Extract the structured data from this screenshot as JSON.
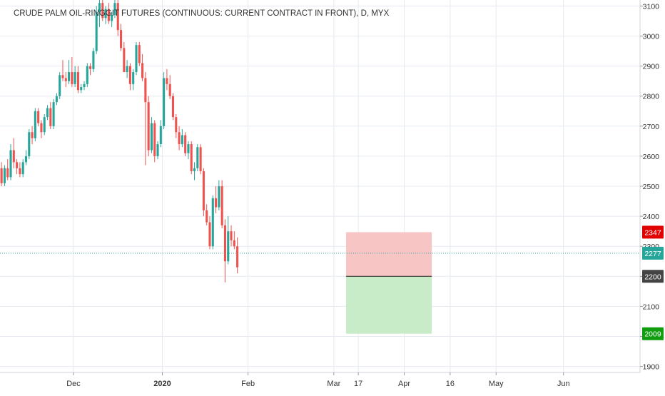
{
  "colors": {
    "up": "#26a69a",
    "down": "#ef5350",
    "grid": "#e6eaf0",
    "axis_text": "#333333",
    "stop_zone": "#f8c5c5",
    "target_zone": "#c8ecc8",
    "current_line": "#26a69a",
    "stop_badge": "#e00000",
    "current_badge": "#26a69a",
    "entry_badge": "#444444",
    "target_badge": "#109e10"
  },
  "chart_data": {
    "type": "candlestick",
    "title": "CRUDE PALM OIL-RINGGIT FUTURES (CONTINUOUS: CURRENT CONTRACT IN FRONT), D, MYX",
    "ylim": [
      1880,
      3120
    ],
    "y_ticks": [
      1900,
      2000,
      2100,
      2200,
      2300,
      2400,
      2500,
      2600,
      2700,
      2800,
      2900,
      3000,
      3100
    ],
    "y_tick_labels": [
      "1900",
      "2000",
      "2100",
      "2200",
      "2300",
      "2400",
      "2500",
      "2600",
      "2700",
      "2800",
      "2900",
      "3000",
      "3100"
    ],
    "x_tick_labels": [
      "Dec",
      "2020",
      "Feb",
      "Mar",
      "17",
      "Apr",
      "16",
      "May",
      "Jun"
    ],
    "x_tick_bold": [
      false,
      true,
      false,
      false,
      false,
      false,
      false,
      false,
      false
    ],
    "x_tick_days": [
      40,
      69,
      97,
      125,
      133,
      148,
      163,
      178,
      200
    ],
    "x_day_range": [
      16,
      225
    ],
    "candle_start_day": 16,
    "candles": [
      [
        2560,
        2580,
        2500,
        2510
      ],
      [
        2510,
        2570,
        2500,
        2560
      ],
      [
        2560,
        2590,
        2520,
        2530
      ],
      [
        2530,
        2640,
        2520,
        2620
      ],
      [
        2620,
        2660,
        2560,
        2580
      ],
      [
        2580,
        2590,
        2540,
        2560
      ],
      [
        2560,
        2580,
        2530,
        2540
      ],
      [
        2540,
        2590,
        2530,
        2580
      ],
      [
        2580,
        2620,
        2570,
        2600
      ],
      [
        2600,
        2690,
        2590,
        2680
      ],
      [
        2680,
        2700,
        2640,
        2660
      ],
      [
        2660,
        2760,
        2650,
        2750
      ],
      [
        2750,
        2760,
        2700,
        2710
      ],
      [
        2710,
        2720,
        2660,
        2680
      ],
      [
        2680,
        2740,
        2670,
        2730
      ],
      [
        2730,
        2770,
        2720,
        2760
      ],
      [
        2760,
        2780,
        2690,
        2700
      ],
      [
        2700,
        2790,
        2690,
        2780
      ],
      [
        2780,
        2810,
        2770,
        2800
      ],
      [
        2800,
        2880,
        2790,
        2870
      ],
      [
        2870,
        2920,
        2850,
        2860
      ],
      [
        2860,
        2880,
        2830,
        2850
      ],
      [
        2850,
        2920,
        2840,
        2880
      ],
      [
        2880,
        2930,
        2830,
        2840
      ],
      [
        2840,
        2900,
        2830,
        2880
      ],
      [
        2880,
        2900,
        2810,
        2820
      ],
      [
        2820,
        2840,
        2810,
        2830
      ],
      [
        2830,
        2850,
        2820,
        2840
      ],
      [
        2840,
        2910,
        2830,
        2900
      ],
      [
        2900,
        2910,
        2870,
        2890
      ],
      [
        2890,
        2960,
        2880,
        2950
      ],
      [
        2950,
        3100,
        2940,
        3080
      ],
      [
        3080,
        3120,
        3030,
        3110
      ],
      [
        3110,
        3120,
        3050,
        3060
      ],
      [
        3060,
        3100,
        3040,
        3090
      ],
      [
        3090,
        3110,
        3040,
        3050
      ],
      [
        3050,
        3080,
        3030,
        3070
      ],
      [
        3070,
        3120,
        3060,
        3110
      ],
      [
        3110,
        3120,
        3000,
        3020
      ],
      [
        3020,
        3040,
        2950,
        2960
      ],
      [
        2960,
        2980,
        2880,
        2880
      ],
      [
        2880,
        2920,
        2860,
        2900
      ],
      [
        2900,
        2910,
        2820,
        2840
      ],
      [
        2840,
        2890,
        2820,
        2880
      ],
      [
        2880,
        2980,
        2870,
        2970
      ],
      [
        2970,
        2980,
        2900,
        2910
      ],
      [
        2910,
        2940,
        2850,
        2860
      ],
      [
        2860,
        2880,
        2570,
        2780
      ],
      [
        2780,
        2800,
        2600,
        2620
      ],
      [
        2620,
        2730,
        2610,
        2710
      ],
      [
        2710,
        2720,
        2580,
        2600
      ],
      [
        2600,
        2650,
        2590,
        2640
      ],
      [
        2640,
        2720,
        2630,
        2700
      ],
      [
        2700,
        2880,
        2690,
        2860
      ],
      [
        2860,
        2890,
        2820,
        2840
      ],
      [
        2840,
        2870,
        2790,
        2800
      ],
      [
        2800,
        2810,
        2720,
        2730
      ],
      [
        2730,
        2740,
        2660,
        2680
      ],
      [
        2680,
        2700,
        2620,
        2640
      ],
      [
        2640,
        2690,
        2630,
        2670
      ],
      [
        2670,
        2680,
        2600,
        2610
      ],
      [
        2610,
        2650,
        2590,
        2640
      ],
      [
        2640,
        2650,
        2540,
        2550
      ],
      [
        2550,
        2580,
        2520,
        2560
      ],
      [
        2560,
        2640,
        2550,
        2630
      ],
      [
        2630,
        2640,
        2540,
        2550
      ],
      [
        2550,
        2560,
        2400,
        2420
      ],
      [
        2420,
        2440,
        2370,
        2380
      ],
      [
        2380,
        2400,
        2290,
        2300
      ],
      [
        2300,
        2470,
        2290,
        2460
      ],
      [
        2460,
        2500,
        2410,
        2430
      ],
      [
        2430,
        2520,
        2420,
        2500
      ],
      [
        2500,
        2520,
        2360,
        2370
      ],
      [
        2370,
        2390,
        2180,
        2250
      ],
      [
        2250,
        2400,
        2240,
        2350
      ],
      [
        2350,
        2370,
        2300,
        2320
      ],
      [
        2320,
        2350,
        2290,
        2300
      ],
      [
        2300,
        2330,
        2210,
        2230
      ]
    ],
    "current_price": 2277,
    "position": {
      "entry": 2200,
      "stop": 2347,
      "target": 2009,
      "start_day": 129,
      "end_day": 157
    },
    "price_labels": {
      "stop": "2347",
      "current": "2277",
      "entry": "2200",
      "target": "2009"
    }
  }
}
